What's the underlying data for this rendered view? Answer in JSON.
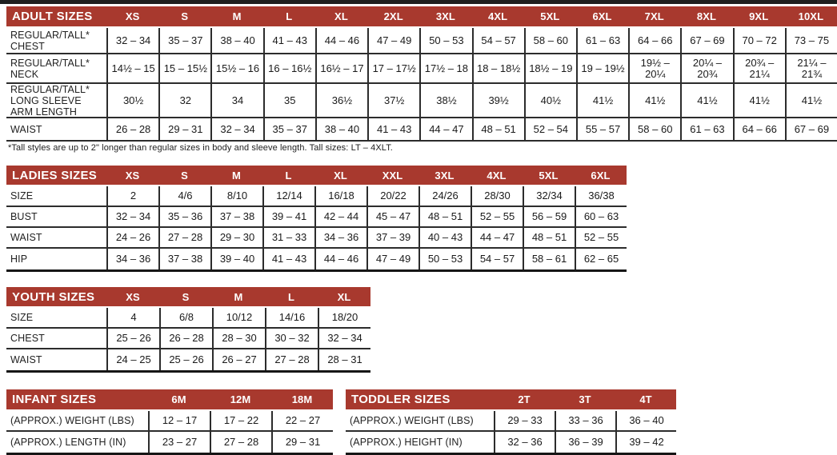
{
  "colors": {
    "header_bg": "#A8392E",
    "header_text": "#FFFFFF",
    "grid_line": "#2C2C2C",
    "body_text": "#1A1A1A",
    "top_bar": "#1F1F1F"
  },
  "footnote": "*Tall styles are up to 2\" longer than regular sizes in body and sleeve length. Tall sizes: LT – 4XLT.",
  "tables": [
    {
      "id": "adult",
      "title": "ADULT SIZES",
      "columns": [
        "XS",
        "S",
        "M",
        "L",
        "XL",
        "2XL",
        "3XL",
        "4XL",
        "5XL",
        "6XL",
        "7XL",
        "8XL",
        "9XL",
        "10XL"
      ],
      "rows": [
        {
          "label": "REGULAR/TALL*\nCHEST",
          "values": [
            "32 – 34",
            "35 – 37",
            "38 – 40",
            "41 – 43",
            "44 – 46",
            "47 – 49",
            "50 – 53",
            "54 – 57",
            "58 – 60",
            "61 – 63",
            "64 – 66",
            "67 – 69",
            "70 – 72",
            "73 – 75"
          ]
        },
        {
          "label": "REGULAR/TALL*\nNECK",
          "values": [
            "14½ – 15",
            "15 – 15½",
            "15½ – 16",
            "16 – 16½",
            "16½ – 17",
            "17 – 17½",
            "17½ – 18",
            "18 – 18½",
            "18½ – 19",
            "19 – 19½",
            "19½ – 20¼",
            "20¼ – 20¾",
            "20¾ – 21¼",
            "21¼ – 21¾"
          ]
        },
        {
          "label": "REGULAR/TALL*\nLONG SLEEVE\nARM LENGTH",
          "values": [
            "30½",
            "32",
            "34",
            "35",
            "36½",
            "37½",
            "38½",
            "39½",
            "40½",
            "41½",
            "41½",
            "41½",
            "41½",
            "41½"
          ]
        },
        {
          "label": "WAIST",
          "values": [
            "26 – 28",
            "29 – 31",
            "32 – 34",
            "35 – 37",
            "38 – 40",
            "41 – 43",
            "44 – 47",
            "48 – 51",
            "52 – 54",
            "55 – 57",
            "58 – 60",
            "61 – 63",
            "64 – 66",
            "67 – 69"
          ]
        }
      ]
    },
    {
      "id": "ladies",
      "title": "LADIES SIZES",
      "columns": [
        "XS",
        "S",
        "M",
        "L",
        "XL",
        "XXL",
        "3XL",
        "4XL",
        "5XL",
        "6XL"
      ],
      "rows": [
        {
          "label": "SIZE",
          "values": [
            "2",
            "4/6",
            "8/10",
            "12/14",
            "16/18",
            "20/22",
            "24/26",
            "28/30",
            "32/34",
            "36/38"
          ]
        },
        {
          "label": "BUST",
          "values": [
            "32 – 34",
            "35 – 36",
            "37 – 38",
            "39 – 41",
            "42 – 44",
            "45 – 47",
            "48 – 51",
            "52 – 55",
            "56 – 59",
            "60 – 63"
          ]
        },
        {
          "label": "WAIST",
          "values": [
            "24 – 26",
            "27 – 28",
            "29 – 30",
            "31 – 33",
            "34 – 36",
            "37 – 39",
            "40 – 43",
            "44 – 47",
            "48 – 51",
            "52 – 55"
          ]
        },
        {
          "label": "HIP",
          "values": [
            "34 – 36",
            "37 – 38",
            "39 – 40",
            "41 – 43",
            "44 – 46",
            "47 – 49",
            "50 – 53",
            "54 – 57",
            "58 – 61",
            "62 – 65"
          ]
        }
      ]
    },
    {
      "id": "youth",
      "title": "YOUTH SIZES",
      "columns": [
        "XS",
        "S",
        "M",
        "L",
        "XL"
      ],
      "rows": [
        {
          "label": "SIZE",
          "values": [
            "4",
            "6/8",
            "10/12",
            "14/16",
            "18/20"
          ]
        },
        {
          "label": "CHEST",
          "values": [
            "25 – 26",
            "26 – 28",
            "28 – 30",
            "30 – 32",
            "32 – 34"
          ]
        },
        {
          "label": "WAIST",
          "values": [
            "24 – 25",
            "25 – 26",
            "26 – 27",
            "27 – 28",
            "28 – 31"
          ]
        }
      ]
    },
    {
      "id": "infant",
      "title": "INFANT SIZES",
      "columns": [
        "6M",
        "12M",
        "18M"
      ],
      "rows": [
        {
          "label": "(APPROX.) WEIGHT (LBS)",
          "values": [
            "12 – 17",
            "17 – 22",
            "22 – 27"
          ]
        },
        {
          "label": "(APPROX.) LENGTH (IN)",
          "values": [
            "23 – 27",
            "27 – 28",
            "29 – 31"
          ]
        }
      ]
    },
    {
      "id": "toddler",
      "title": "TODDLER SIZES",
      "columns": [
        "2T",
        "3T",
        "4T"
      ],
      "rows": [
        {
          "label": "(APPROX.) WEIGHT (LBS)",
          "values": [
            "29 – 33",
            "33 – 36",
            "36 – 40"
          ]
        },
        {
          "label": "(APPROX.) HEIGHT (IN)",
          "values": [
            "32 – 36",
            "36 – 39",
            "39 – 42"
          ]
        }
      ]
    }
  ]
}
